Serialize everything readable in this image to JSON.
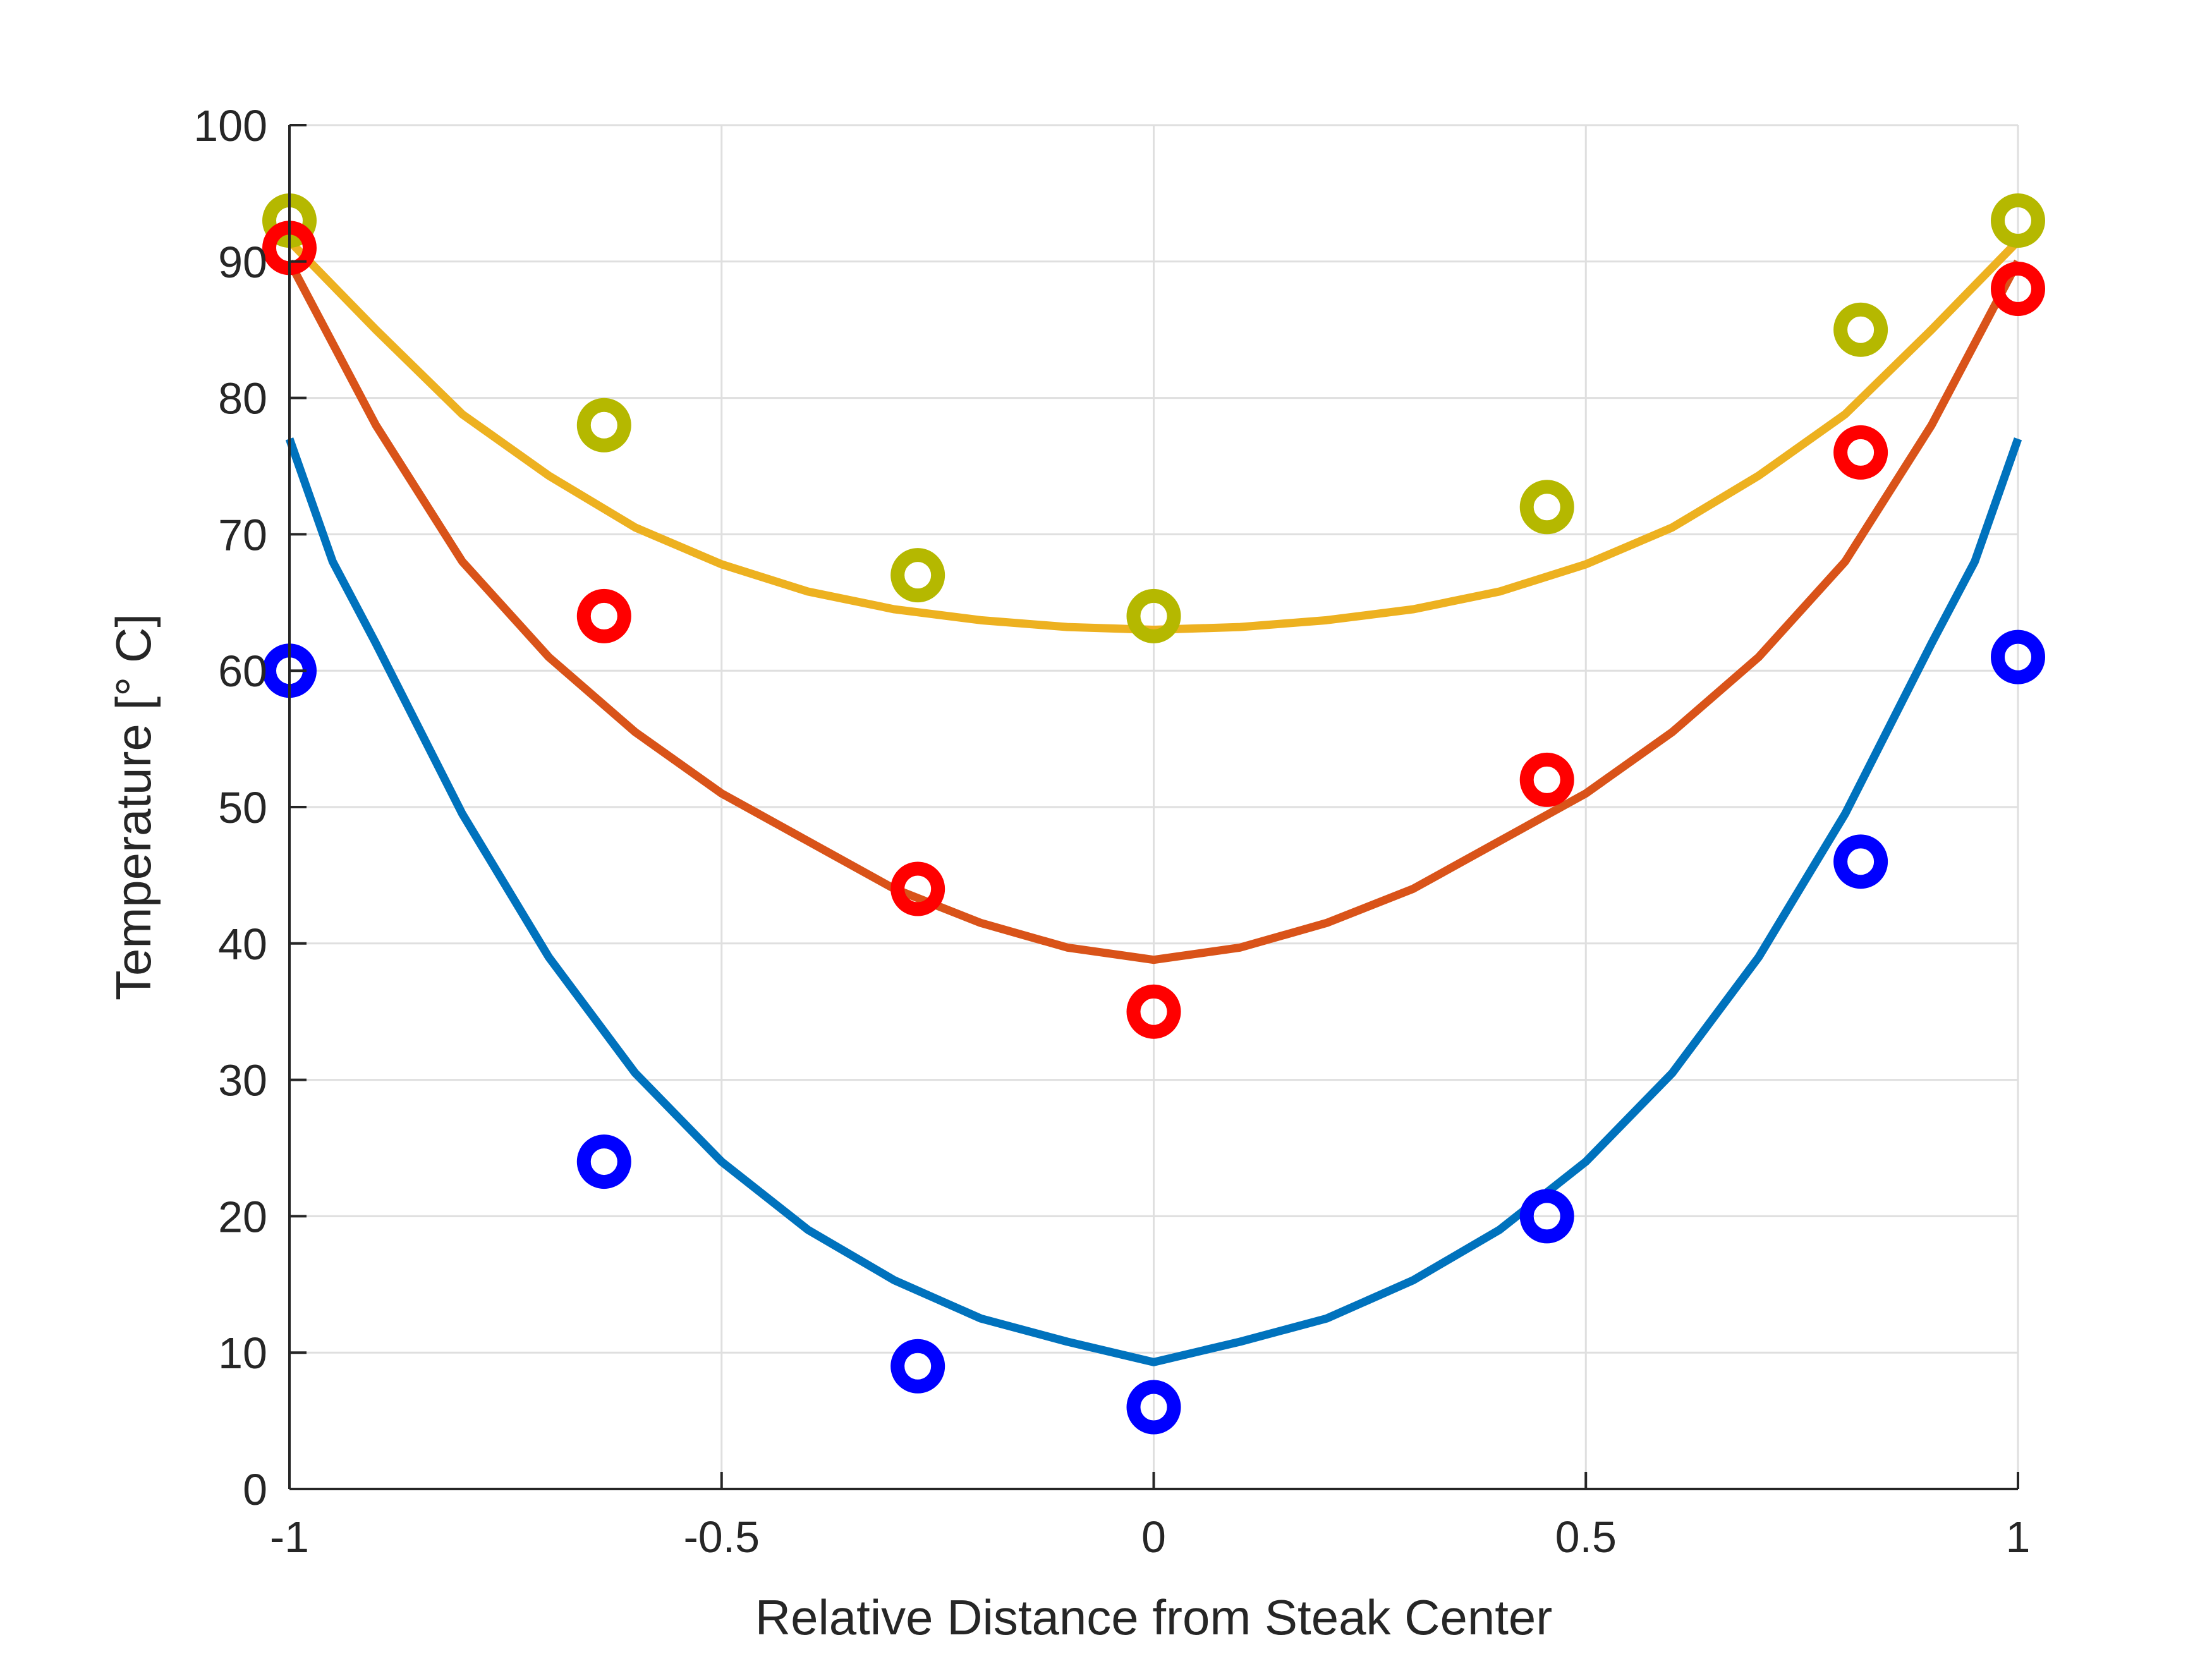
{
  "chart_data": {
    "type": "scatter",
    "title": "",
    "xlabel": "Relative Distance from Steak Center",
    "ylabel": "Temperature [° C]",
    "xlim": [
      -1,
      1
    ],
    "ylim": [
      0,
      100
    ],
    "xticks": [
      -1,
      -0.5,
      0,
      0.5,
      1
    ],
    "xtick_labels": [
      "-1",
      "-0.5",
      "0",
      "0.5",
      "1"
    ],
    "yticks": [
      0,
      10,
      20,
      30,
      40,
      50,
      60,
      70,
      80,
      90,
      100
    ],
    "ytick_labels": [
      "0",
      "10",
      "20",
      "30",
      "40",
      "50",
      "60",
      "70",
      "80",
      "90",
      "100"
    ],
    "grid": true,
    "measured_series": [
      {
        "color": "#b5b800",
        "x": [
          -1,
          -0.636,
          -0.273,
          0,
          0.455,
          0.818,
          1
        ],
        "y": [
          93,
          78,
          67,
          64,
          72,
          85,
          93
        ]
      },
      {
        "color": "#ff0000",
        "x": [
          -1,
          -0.636,
          -0.273,
          0,
          0.455,
          0.818,
          1
        ],
        "y": [
          91,
          64,
          44,
          35,
          52,
          76,
          88
        ]
      },
      {
        "color": "#0000ff",
        "x": [
          -1,
          -0.636,
          -0.273,
          0,
          0.455,
          0.818,
          1
        ],
        "y": [
          60,
          24,
          9,
          6,
          20,
          46,
          61
        ]
      }
    ],
    "fit_series": [
      {
        "color": "#edb120",
        "x": [
          -1,
          -0.9,
          -0.8,
          -0.7,
          -0.6,
          -0.5,
          -0.4,
          -0.3,
          -0.2,
          -0.1,
          0,
          0.1,
          0.2,
          0.3,
          0.4,
          0.5,
          0.6,
          0.7,
          0.8,
          0.9,
          1
        ],
        "y": [
          91.5,
          85,
          78.8,
          74.3,
          70.5,
          67.8,
          65.8,
          64.5,
          63.7,
          63.2,
          63,
          63.2,
          63.7,
          64.5,
          65.8,
          67.8,
          70.5,
          74.3,
          78.8,
          85,
          91.5
        ]
      },
      {
        "color": "#d95319",
        "x": [
          -1,
          -0.9,
          -0.8,
          -0.7,
          -0.6,
          -0.5,
          -0.4,
          -0.3,
          -0.2,
          -0.1,
          0,
          0.1,
          0.2,
          0.3,
          0.4,
          0.5,
          0.6,
          0.7,
          0.8,
          0.9,
          1
        ],
        "y": [
          90,
          78,
          68,
          61,
          55.5,
          51,
          47.5,
          44,
          41.5,
          39.7,
          38.8,
          39.7,
          41.5,
          44,
          47.5,
          51,
          55.5,
          61,
          68,
          78,
          90
        ]
      },
      {
        "color": "#0072bd",
        "x": [
          -1,
          -0.95,
          -0.9,
          -0.8,
          -0.7,
          -0.6,
          -0.5,
          -0.4,
          -0.3,
          -0.2,
          -0.1,
          0,
          0.1,
          0.2,
          0.3,
          0.4,
          0.5,
          0.6,
          0.7,
          0.8,
          0.9,
          0.95,
          1
        ],
        "y": [
          77,
          68,
          62,
          49.5,
          39,
          30.5,
          24,
          19,
          15.3,
          12.5,
          10.8,
          9.3,
          10.8,
          12.5,
          15.3,
          19,
          24,
          30.5,
          39,
          49.5,
          62,
          68,
          77
        ]
      }
    ]
  }
}
